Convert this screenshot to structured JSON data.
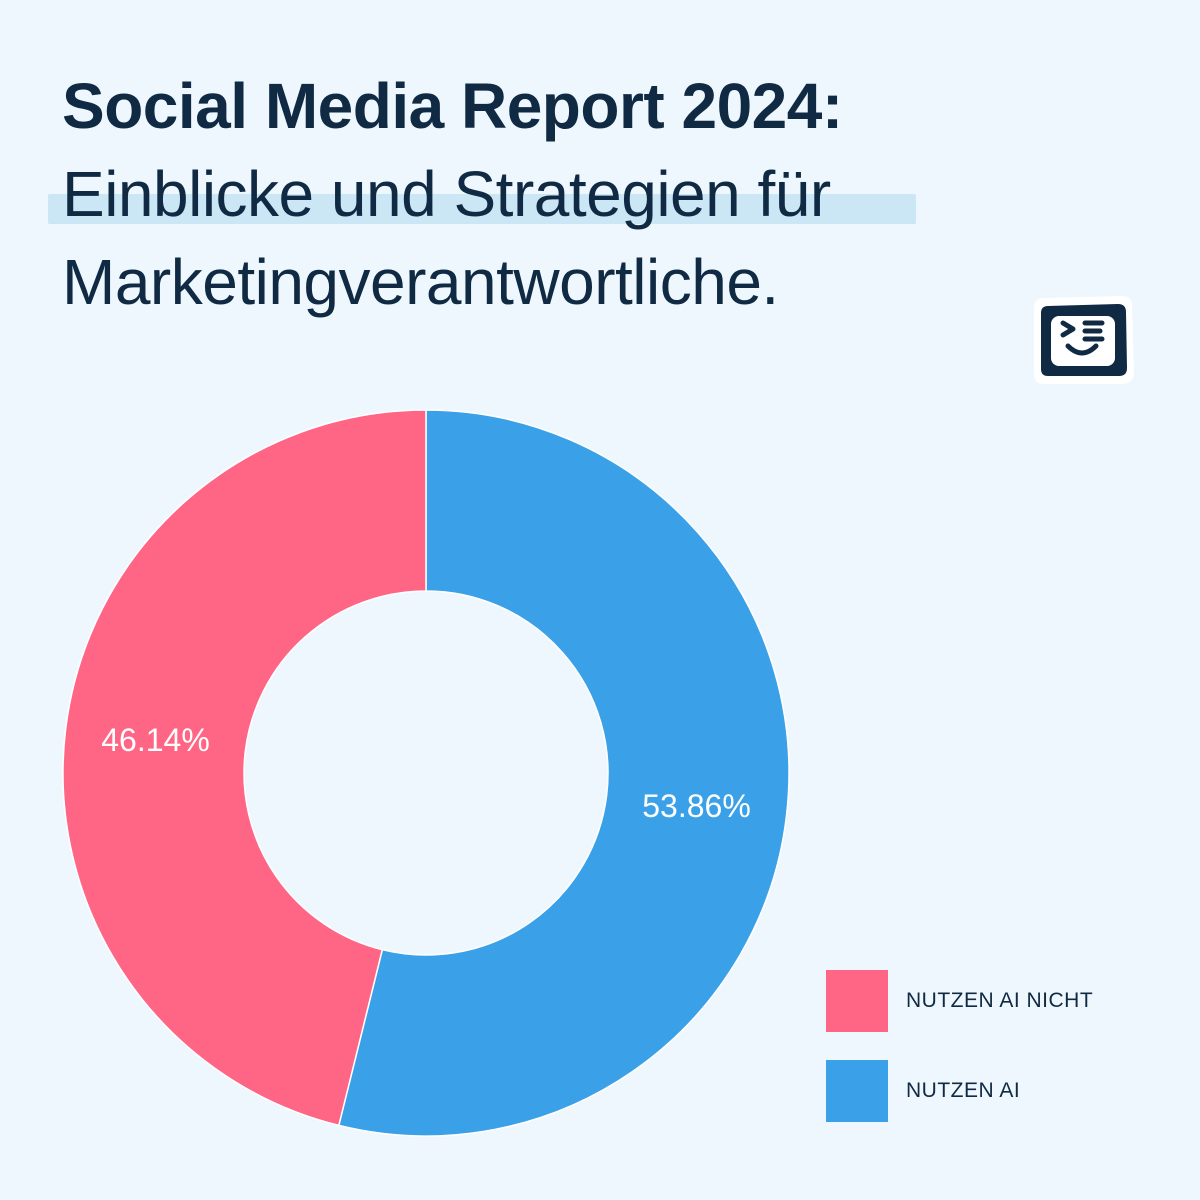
{
  "title": {
    "line1": "Social Media Report 2024:",
    "line2": "Einblicke und Strategien für",
    "line3": "Marketingverantwortliche."
  },
  "logo": {
    "icon": "smiley-terminal-icon"
  },
  "colors": {
    "background": "#eef7fd",
    "pink": "#ff6584",
    "blue": "#3aa1e8",
    "text": "#102a43",
    "highlight": "#cbe6f5"
  },
  "chart_data": {
    "type": "pie",
    "donut": true,
    "series": [
      {
        "name": "NUTZEN AI NICHT",
        "value": 46.14,
        "label": "46.14%",
        "color": "#ff6584"
      },
      {
        "name": "NUTZEN AI",
        "value": 53.86,
        "label": "53.86%",
        "color": "#3aa1e8"
      }
    ],
    "legend": "bottom-right"
  },
  "legend": {
    "items": [
      {
        "label": "NUTZEN AI NICHT",
        "color": "#ff6584"
      },
      {
        "label": "NUTZEN AI",
        "color": "#3aa1e8"
      }
    ]
  }
}
